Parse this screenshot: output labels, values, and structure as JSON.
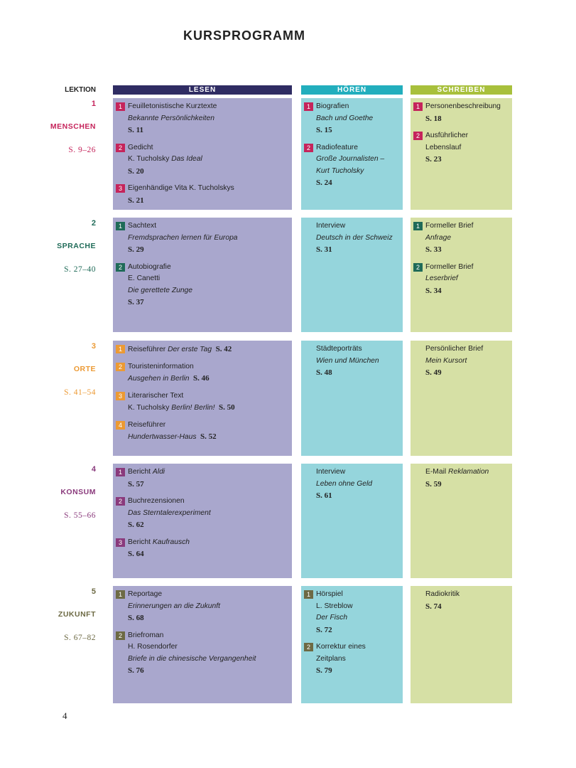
{
  "title": "KURSPROGRAMM",
  "lektion_label": "LEKTION",
  "page_number": "4",
  "columns": [
    {
      "label": "LESEN",
      "color": "#2f2c63",
      "bg": "#a9a7cd"
    },
    {
      "label": "HÖREN",
      "color": "#22aebd",
      "bg": "#95d5dc"
    },
    {
      "label": "SCHREIBEN",
      "color": "#a8c03c",
      "bg": "#d6e0a5"
    }
  ],
  "rows": [
    {
      "lektion": "1",
      "name": "MENSCHEN",
      "pages": "S. 9–26",
      "color": "#c5245b",
      "cells": [
        [
          {
            "num": "1",
            "lines": [
              [
                "Feuilletonistische Kurztexte"
              ],
              [
                {
                  "i": "Bekannte Persönlichkeiten"
                }
              ],
              [
                {
                  "b": "S. 11"
                }
              ]
            ]
          },
          {
            "num": "2",
            "lines": [
              [
                "Gedicht"
              ],
              [
                "K. Tucholsky ",
                {
                  "i": "Das Ideal"
                }
              ],
              [
                {
                  "b": "S. 20"
                }
              ]
            ]
          },
          {
            "num": "3",
            "lines": [
              [
                "Eigenhändige Vita K. Tucholskys"
              ],
              [
                {
                  "b": "S. 21"
                }
              ]
            ]
          }
        ],
        [
          {
            "num": "1",
            "lines": [
              [
                "Biografien"
              ],
              [
                {
                  "i": "Bach und Goethe"
                }
              ],
              [
                {
                  "b": "S. 15"
                }
              ]
            ]
          },
          {
            "num": "2",
            "lines": [
              [
                "Radiofeature"
              ],
              [
                {
                  "i": "Große Journalisten –"
                }
              ],
              [
                {
                  "i": "Kurt Tucholsky"
                }
              ],
              [
                {
                  "b": "S. 24"
                }
              ]
            ]
          }
        ],
        [
          {
            "num": "1",
            "lines": [
              [
                "Personenbeschreibung"
              ],
              [
                {
                  "b": "S. 18"
                }
              ]
            ]
          },
          {
            "num": "2",
            "lines": [
              [
                "Ausführlicher"
              ],
              [
                "Lebenslauf"
              ],
              [
                {
                  "b": "S. 23"
                }
              ]
            ]
          }
        ]
      ]
    },
    {
      "lektion": "2",
      "name": "SPRACHE",
      "pages": "S. 27–40",
      "color": "#1f6b58",
      "cells": [
        [
          {
            "num": "1",
            "lines": [
              [
                "Sachtext"
              ],
              [
                {
                  "i": "Fremdsprachen lernen für Europa"
                }
              ],
              [
                {
                  "b": "S. 29"
                }
              ]
            ]
          },
          {
            "num": "2",
            "lines": [
              [
                "Autobiografie"
              ],
              [
                "E. Canetti"
              ],
              [
                {
                  "i": "Die gerettete Zunge"
                }
              ],
              [
                {
                  "b": "S. 37"
                }
              ]
            ]
          }
        ],
        [
          {
            "lines": [
              [
                "Interview"
              ],
              [
                {
                  "i": "Deutsch in der Schweiz"
                }
              ],
              [
                {
                  "b": "S. 31"
                }
              ]
            ]
          }
        ],
        [
          {
            "num": "1",
            "lines": [
              [
                "Formeller Brief"
              ],
              [
                {
                  "i": "Anfrage"
                }
              ],
              [
                {
                  "b": "S. 33"
                }
              ]
            ]
          },
          {
            "num": "2",
            "lines": [
              [
                "Formeller Brief"
              ],
              [
                {
                  "i": "Leserbrief"
                }
              ],
              [
                {
                  "b": "S. 34"
                }
              ]
            ]
          }
        ]
      ]
    },
    {
      "lektion": "3",
      "name": "ORTE",
      "pages": "S. 41–54",
      "color": "#ec9a34",
      "cells": [
        [
          {
            "num": "1",
            "lines": [
              [
                "Reiseführer ",
                {
                  "i": "Der erste Tag"
                },
                {
                  "b": "  S. 42"
                }
              ]
            ]
          },
          {
            "num": "2",
            "lines": [
              [
                "Touristeninformation"
              ],
              [
                {
                  "i": "Ausgehen in Berlin"
                },
                {
                  "b": "  S. 46"
                }
              ]
            ]
          },
          {
            "num": "3",
            "lines": [
              [
                "Literarischer Text"
              ],
              [
                "K. Tucholsky ",
                {
                  "i": "Berlin! Berlin!"
                },
                {
                  "b": "  S. 50"
                }
              ]
            ]
          },
          {
            "num": "4",
            "lines": [
              [
                "Reiseführer"
              ],
              [
                {
                  "i": "Hundertwasser-Haus"
                },
                {
                  "b": "  S. 52"
                }
              ]
            ]
          }
        ],
        [
          {
            "lines": [
              [
                "Städteporträts"
              ],
              [
                {
                  "i": "Wien und München"
                }
              ],
              [
                {
                  "b": "S. 48"
                }
              ]
            ]
          }
        ],
        [
          {
            "lines": [
              [
                "Persönlicher Brief"
              ],
              [
                {
                  "i": "Mein Kursort"
                }
              ],
              [
                {
                  "b": "S. 49"
                }
              ]
            ]
          }
        ]
      ]
    },
    {
      "lektion": "4",
      "name": "KONSUM",
      "pages": "S. 55–66",
      "color": "#8a3a7c",
      "cells": [
        [
          {
            "num": "1",
            "lines": [
              [
                "Bericht ",
                {
                  "i": "Aldi"
                }
              ],
              [
                {
                  "b": "S. 57"
                }
              ]
            ]
          },
          {
            "num": "2",
            "lines": [
              [
                "Buchrezensionen"
              ],
              [
                {
                  "i": "Das Sterntalerexperiment"
                }
              ],
              [
                {
                  "b": "S. 62"
                }
              ]
            ]
          },
          {
            "num": "3",
            "lines": [
              [
                "Bericht ",
                {
                  "i": "Kaufrausch"
                }
              ],
              [
                {
                  "b": "S. 64"
                }
              ]
            ]
          }
        ],
        [
          {
            "lines": [
              [
                "Interview"
              ],
              [
                {
                  "i": "Leben ohne Geld"
                }
              ],
              [
                {
                  "b": "S. 61"
                }
              ]
            ]
          }
        ],
        [
          {
            "lines": [
              [
                "E-Mail ",
                {
                  "i": "Reklamation"
                }
              ],
              [
                {
                  "b": "S. 59"
                }
              ]
            ]
          }
        ]
      ]
    },
    {
      "lektion": "5",
      "name": "ZUKUNFT",
      "pages": "S. 67–82",
      "color": "#6d6a44",
      "cells": [
        [
          {
            "num": "1",
            "lines": [
              [
                "Reportage"
              ],
              [
                {
                  "i": "Erinnerungen an die Zukunft"
                }
              ],
              [
                {
                  "b": "S. 68"
                }
              ]
            ]
          },
          {
            "num": "2",
            "lines": [
              [
                "Briefroman"
              ],
              [
                "H. Rosendorfer"
              ],
              [
                {
                  "i": "Briefe in die chinesische Vergangenheit"
                }
              ],
              [
                {
                  "b": "S. 76"
                }
              ]
            ]
          }
        ],
        [
          {
            "num": "1",
            "lines": [
              [
                "Hörspiel"
              ],
              [
                "L. Streblow"
              ],
              [
                {
                  "i": "Der Fisch"
                }
              ],
              [
                {
                  "b": "S. 72"
                }
              ]
            ]
          },
          {
            "num": "2",
            "lines": [
              [
                "Korrektur eines"
              ],
              [
                "Zeitplans"
              ],
              [
                {
                  "b": "S. 79"
                }
              ]
            ]
          }
        ],
        [
          {
            "lines": [
              [
                "Radiokritik"
              ],
              [
                {
                  "b": "S. 74"
                }
              ]
            ]
          }
        ]
      ]
    }
  ]
}
